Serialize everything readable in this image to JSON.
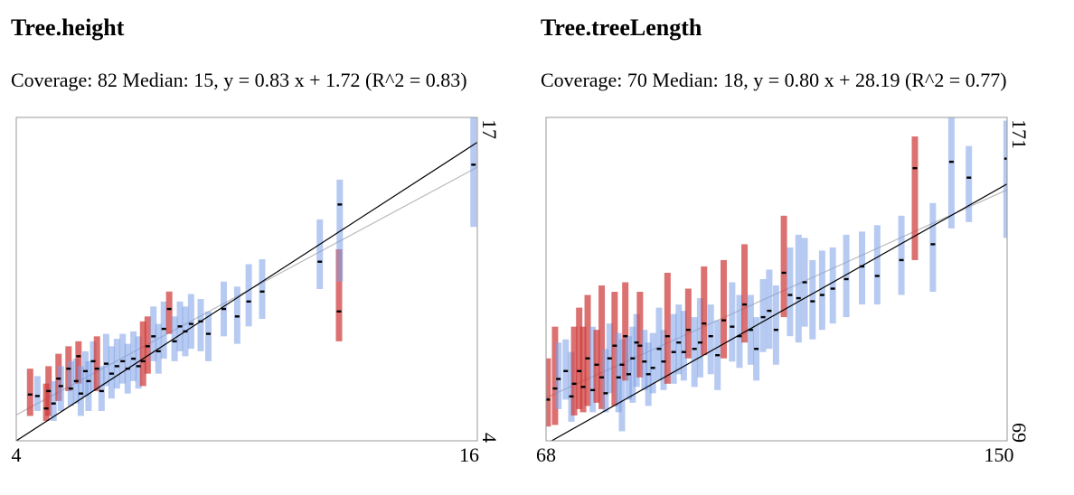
{
  "colors": {
    "inside": "#7c9fe6",
    "outside": "#cf3a3a",
    "point": "#000000",
    "fit_line": "#bbbbbb",
    "identity_line": "#000000",
    "frame": "#999999"
  },
  "chart_data": [
    {
      "type": "scatter",
      "title": "Tree.height",
      "stats": "Coverage: 82 Median: 15, y = 0.83 x + 1.72 (R^2 = 0.83)",
      "x_tick_labels": [
        "4",
        "16"
      ],
      "y_tick_labels": [
        "4",
        "17"
      ],
      "xlim": [
        4,
        16
      ],
      "ylim": [
        4,
        17
      ],
      "fit": {
        "slope": 0.83,
        "intercept": 1.72
      },
      "grid": false,
      "points": [
        {
          "x": 4.36,
          "y": 5.86,
          "lo": 5.0,
          "hi": 6.9,
          "inside": false
        },
        {
          "x": 4.55,
          "y": 5.8,
          "lo": 5.2,
          "hi": 6.6,
          "inside": true
        },
        {
          "x": 4.78,
          "y": 5.3,
          "lo": 4.8,
          "hi": 6.3,
          "inside": false
        },
        {
          "x": 4.84,
          "y": 6.0,
          "lo": 5.0,
          "hi": 7.0,
          "inside": false
        },
        {
          "x": 4.97,
          "y": 5.5,
          "lo": 4.8,
          "hi": 6.4,
          "inside": true
        },
        {
          "x": 5.1,
          "y": 6.5,
          "lo": 5.6,
          "hi": 7.5,
          "inside": false
        },
        {
          "x": 5.16,
          "y": 6.2,
          "lo": 5.2,
          "hi": 7.0,
          "inside": true
        },
        {
          "x": 5.36,
          "y": 6.9,
          "lo": 6.0,
          "hi": 7.8,
          "inside": false
        },
        {
          "x": 5.42,
          "y": 6.1,
          "lo": 5.4,
          "hi": 7.2,
          "inside": true
        },
        {
          "x": 5.56,
          "y": 6.4,
          "lo": 5.5,
          "hi": 7.3,
          "inside": true
        },
        {
          "x": 5.62,
          "y": 7.4,
          "lo": 6.3,
          "hi": 8.0,
          "inside": false
        },
        {
          "x": 5.68,
          "y": 5.9,
          "lo": 5.0,
          "hi": 7.0,
          "inside": true
        },
        {
          "x": 5.8,
          "y": 6.8,
          "lo": 5.8,
          "hi": 7.6,
          "inside": true
        },
        {
          "x": 5.88,
          "y": 6.4,
          "lo": 5.2,
          "hi": 7.2,
          "inside": true
        },
        {
          "x": 6.0,
          "y": 7.2,
          "lo": 6.0,
          "hi": 8.0,
          "inside": true
        },
        {
          "x": 6.1,
          "y": 6.9,
          "lo": 6.0,
          "hi": 8.2,
          "inside": false
        },
        {
          "x": 6.22,
          "y": 6.0,
          "lo": 5.2,
          "hi": 7.0,
          "inside": true
        },
        {
          "x": 6.34,
          "y": 7.1,
          "lo": 6.2,
          "hi": 8.3,
          "inside": true
        },
        {
          "x": 6.48,
          "y": 6.7,
          "lo": 5.7,
          "hi": 7.8,
          "inside": true
        },
        {
          "x": 6.62,
          "y": 7.0,
          "lo": 6.1,
          "hi": 8.1,
          "inside": true
        },
        {
          "x": 6.77,
          "y": 7.2,
          "lo": 6.3,
          "hi": 8.3,
          "inside": true
        },
        {
          "x": 6.9,
          "y": 6.9,
          "lo": 5.9,
          "hi": 7.9,
          "inside": true
        },
        {
          "x": 7.05,
          "y": 7.3,
          "lo": 6.4,
          "hi": 8.4,
          "inside": true
        },
        {
          "x": 7.18,
          "y": 7.0,
          "lo": 6.1,
          "hi": 8.2,
          "inside": true
        },
        {
          "x": 7.3,
          "y": 7.2,
          "lo": 6.2,
          "hi": 8.8,
          "inside": false
        },
        {
          "x": 7.42,
          "y": 7.8,
          "lo": 6.7,
          "hi": 9.0,
          "inside": false
        },
        {
          "x": 7.57,
          "y": 8.2,
          "lo": 7.2,
          "hi": 9.4,
          "inside": true
        },
        {
          "x": 7.7,
          "y": 7.6,
          "lo": 6.7,
          "hi": 8.7,
          "inside": true
        },
        {
          "x": 7.84,
          "y": 8.5,
          "lo": 7.3,
          "hi": 9.6,
          "inside": true
        },
        {
          "x": 7.98,
          "y": 9.3,
          "lo": 8.3,
          "hi": 10.0,
          "inside": false
        },
        {
          "x": 8.12,
          "y": 8.0,
          "lo": 7.2,
          "hi": 9.0,
          "inside": true
        },
        {
          "x": 8.26,
          "y": 8.6,
          "lo": 7.6,
          "hi": 9.6,
          "inside": true
        },
        {
          "x": 8.4,
          "y": 8.4,
          "lo": 7.4,
          "hi": 9.4,
          "inside": true
        },
        {
          "x": 8.55,
          "y": 8.7,
          "lo": 7.7,
          "hi": 9.9,
          "inside": true
        },
        {
          "x": 8.8,
          "y": 8.8,
          "lo": 7.6,
          "hi": 9.7,
          "inside": true
        },
        {
          "x": 9.0,
          "y": 8.3,
          "lo": 7.2,
          "hi": 9.2,
          "inside": true
        },
        {
          "x": 9.4,
          "y": 9.3,
          "lo": 8.2,
          "hi": 10.4,
          "inside": true
        },
        {
          "x": 9.75,
          "y": 9.0,
          "lo": 7.9,
          "hi": 10.2,
          "inside": true
        },
        {
          "x": 10.05,
          "y": 9.6,
          "lo": 8.6,
          "hi": 11.1,
          "inside": true
        },
        {
          "x": 10.4,
          "y": 10.0,
          "lo": 8.9,
          "hi": 11.3,
          "inside": true
        },
        {
          "x": 11.9,
          "y": 11.2,
          "lo": 10.1,
          "hi": 12.9,
          "inside": true
        },
        {
          "x": 12.4,
          "y": 9.2,
          "lo": 8.0,
          "hi": 11.7,
          "inside": false
        },
        {
          "x": 12.42,
          "y": 13.5,
          "lo": 10.4,
          "hi": 14.5,
          "inside": true
        },
        {
          "x": 15.9,
          "y": 15.1,
          "lo": 12.6,
          "hi": 17.0,
          "inside": true
        }
      ]
    },
    {
      "type": "scatter",
      "title": "Tree.treeLength",
      "stats": "Coverage: 70 Median: 18, y = 0.80 x + 28.19 (R^2 = 0.77)",
      "x_tick_labels": [
        "68",
        "150"
      ],
      "y_tick_labels": [
        "69",
        "171"
      ],
      "xlim": [
        68,
        150
      ],
      "ylim": [
        69,
        171
      ],
      "fit": {
        "slope": 0.8,
        "intercept": 28.19
      },
      "grid": false,
      "points": [
        {
          "x": 68.3,
          "y": 82.0,
          "lo": 73.5,
          "hi": 95.0,
          "inside": false
        },
        {
          "x": 69.6,
          "y": 85.5,
          "lo": 74.0,
          "hi": 105.0,
          "inside": false
        },
        {
          "x": 70.2,
          "y": 88.5,
          "lo": 79.0,
          "hi": 100.0,
          "inside": true
        },
        {
          "x": 71.5,
          "y": 91.0,
          "lo": 82.0,
          "hi": 101.0,
          "inside": true
        },
        {
          "x": 72.5,
          "y": 83.0,
          "lo": 75.0,
          "hi": 97.0,
          "inside": true
        },
        {
          "x": 73.0,
          "y": 87.0,
          "lo": 77.0,
          "hi": 105.0,
          "inside": false
        },
        {
          "x": 73.9,
          "y": 91.0,
          "lo": 79.0,
          "hi": 111.0,
          "inside": false
        },
        {
          "x": 74.6,
          "y": 86.0,
          "lo": 78.0,
          "hi": 105.0,
          "inside": false
        },
        {
          "x": 75.4,
          "y": 95.0,
          "lo": 80.0,
          "hi": 115.0,
          "inside": false
        },
        {
          "x": 76.3,
          "y": 85.0,
          "lo": 78.0,
          "hi": 105.0,
          "inside": true
        },
        {
          "x": 77.0,
          "y": 93.0,
          "lo": 81.0,
          "hi": 104.0,
          "inside": false
        },
        {
          "x": 77.9,
          "y": 89.0,
          "lo": 79.0,
          "hi": 118.0,
          "inside": false
        },
        {
          "x": 78.6,
          "y": 84.0,
          "lo": 78.0,
          "hi": 98.0,
          "inside": true
        },
        {
          "x": 79.3,
          "y": 95.0,
          "lo": 84.0,
          "hi": 106.0,
          "inside": true
        },
        {
          "x": 80.2,
          "y": 99.0,
          "lo": 80.0,
          "hi": 116.0,
          "inside": false
        },
        {
          "x": 80.9,
          "y": 89.0,
          "lo": 78.0,
          "hi": 103.0,
          "inside": true
        },
        {
          "x": 81.5,
          "y": 93.0,
          "lo": 72.0,
          "hi": 101.0,
          "inside": true
        },
        {
          "x": 82.1,
          "y": 102.0,
          "lo": 88.0,
          "hi": 119.0,
          "inside": false
        },
        {
          "x": 82.7,
          "y": 90.0,
          "lo": 82.0,
          "hi": 102.0,
          "inside": true
        },
        {
          "x": 83.4,
          "y": 95.0,
          "lo": 81.0,
          "hi": 105.0,
          "inside": true
        },
        {
          "x": 84.1,
          "y": 100.0,
          "lo": 86.0,
          "hi": 109.0,
          "inside": true
        },
        {
          "x": 84.7,
          "y": 99.0,
          "lo": 89.0,
          "hi": 116.0,
          "inside": false
        },
        {
          "x": 85.5,
          "y": 94.0,
          "lo": 85.0,
          "hi": 104.0,
          "inside": true
        },
        {
          "x": 86.2,
          "y": 90.0,
          "lo": 80.0,
          "hi": 100.0,
          "inside": true
        },
        {
          "x": 87.0,
          "y": 92.0,
          "lo": 84.0,
          "hi": 103.0,
          "inside": true
        },
        {
          "x": 88.1,
          "y": 98.0,
          "lo": 88.0,
          "hi": 111.0,
          "inside": true
        },
        {
          "x": 88.9,
          "y": 94.0,
          "lo": 85.0,
          "hi": 104.0,
          "inside": true
        },
        {
          "x": 89.6,
          "y": 102.0,
          "lo": 87.0,
          "hi": 122.0,
          "inside": false
        },
        {
          "x": 90.7,
          "y": 97.0,
          "lo": 87.0,
          "hi": 109.0,
          "inside": true
        },
        {
          "x": 91.6,
          "y": 100.0,
          "lo": 90.0,
          "hi": 112.0,
          "inside": true
        },
        {
          "x": 92.5,
          "y": 97.0,
          "lo": 88.0,
          "hi": 110.0,
          "inside": true
        },
        {
          "x": 93.3,
          "y": 104.0,
          "lo": 95.0,
          "hi": 117.0,
          "inside": false
        },
        {
          "x": 94.4,
          "y": 98.0,
          "lo": 86.0,
          "hi": 108.0,
          "inside": true
        },
        {
          "x": 95.4,
          "y": 100.0,
          "lo": 89.0,
          "hi": 114.0,
          "inside": true
        },
        {
          "x": 96.1,
          "y": 106.0,
          "lo": 96.0,
          "hi": 124.0,
          "inside": false
        },
        {
          "x": 97.3,
          "y": 102.0,
          "lo": 90.0,
          "hi": 112.0,
          "inside": true
        },
        {
          "x": 98.5,
          "y": 96.0,
          "lo": 85.0,
          "hi": 107.0,
          "inside": true
        },
        {
          "x": 99.6,
          "y": 107.0,
          "lo": 95.0,
          "hi": 126.0,
          "inside": false
        },
        {
          "x": 101.1,
          "y": 105.0,
          "lo": 94.0,
          "hi": 119.0,
          "inside": true
        },
        {
          "x": 102.4,
          "y": 102.0,
          "lo": 92.0,
          "hi": 115.0,
          "inside": true
        },
        {
          "x": 103.3,
          "y": 112.0,
          "lo": 100.0,
          "hi": 131.0,
          "inside": false
        },
        {
          "x": 104.4,
          "y": 104.0,
          "lo": 93.0,
          "hi": 115.0,
          "inside": true
        },
        {
          "x": 105.4,
          "y": 98.0,
          "lo": 88.0,
          "hi": 108.0,
          "inside": true
        },
        {
          "x": 106.6,
          "y": 108.0,
          "lo": 97.0,
          "hi": 120.0,
          "inside": true
        },
        {
          "x": 107.7,
          "y": 110.0,
          "lo": 98.0,
          "hi": 123.0,
          "inside": true
        },
        {
          "x": 108.9,
          "y": 104.0,
          "lo": 93.0,
          "hi": 118.0,
          "inside": true
        },
        {
          "x": 110.3,
          "y": 122.0,
          "lo": 108.0,
          "hi": 140.0,
          "inside": false
        },
        {
          "x": 111.4,
          "y": 115.0,
          "lo": 102.0,
          "hi": 130.0,
          "inside": true
        },
        {
          "x": 112.9,
          "y": 114.0,
          "lo": 100.0,
          "hi": 134.0,
          "inside": true
        },
        {
          "x": 114.0,
          "y": 119.0,
          "lo": 105.0,
          "hi": 133.0,
          "inside": true
        },
        {
          "x": 115.4,
          "y": 113.0,
          "lo": 101.0,
          "hi": 126.0,
          "inside": true
        },
        {
          "x": 117.1,
          "y": 115.0,
          "lo": 104.0,
          "hi": 129.0,
          "inside": true
        },
        {
          "x": 119.0,
          "y": 117.0,
          "lo": 106.0,
          "hi": 130.0,
          "inside": true
        },
        {
          "x": 121.4,
          "y": 120.0,
          "lo": 108.0,
          "hi": 134.0,
          "inside": true
        },
        {
          "x": 124.2,
          "y": 124.0,
          "lo": 112.0,
          "hi": 135.0,
          "inside": true
        },
        {
          "x": 126.9,
          "y": 121.0,
          "lo": 112.0,
          "hi": 137.0,
          "inside": true
        },
        {
          "x": 131.2,
          "y": 126.0,
          "lo": 115.0,
          "hi": 140.0,
          "inside": true
        },
        {
          "x": 133.6,
          "y": 155.0,
          "lo": 126.0,
          "hi": 165.0,
          "inside": false
        },
        {
          "x": 136.8,
          "y": 131.0,
          "lo": 116.0,
          "hi": 144.0,
          "inside": true
        },
        {
          "x": 140.1,
          "y": 157.0,
          "lo": 136.0,
          "hi": 171.0,
          "inside": true
        },
        {
          "x": 143.2,
          "y": 152.0,
          "lo": 138.0,
          "hi": 162.0,
          "inside": true
        },
        {
          "x": 149.9,
          "y": 158.0,
          "lo": 133.0,
          "hi": 170.0,
          "inside": true
        }
      ]
    }
  ]
}
